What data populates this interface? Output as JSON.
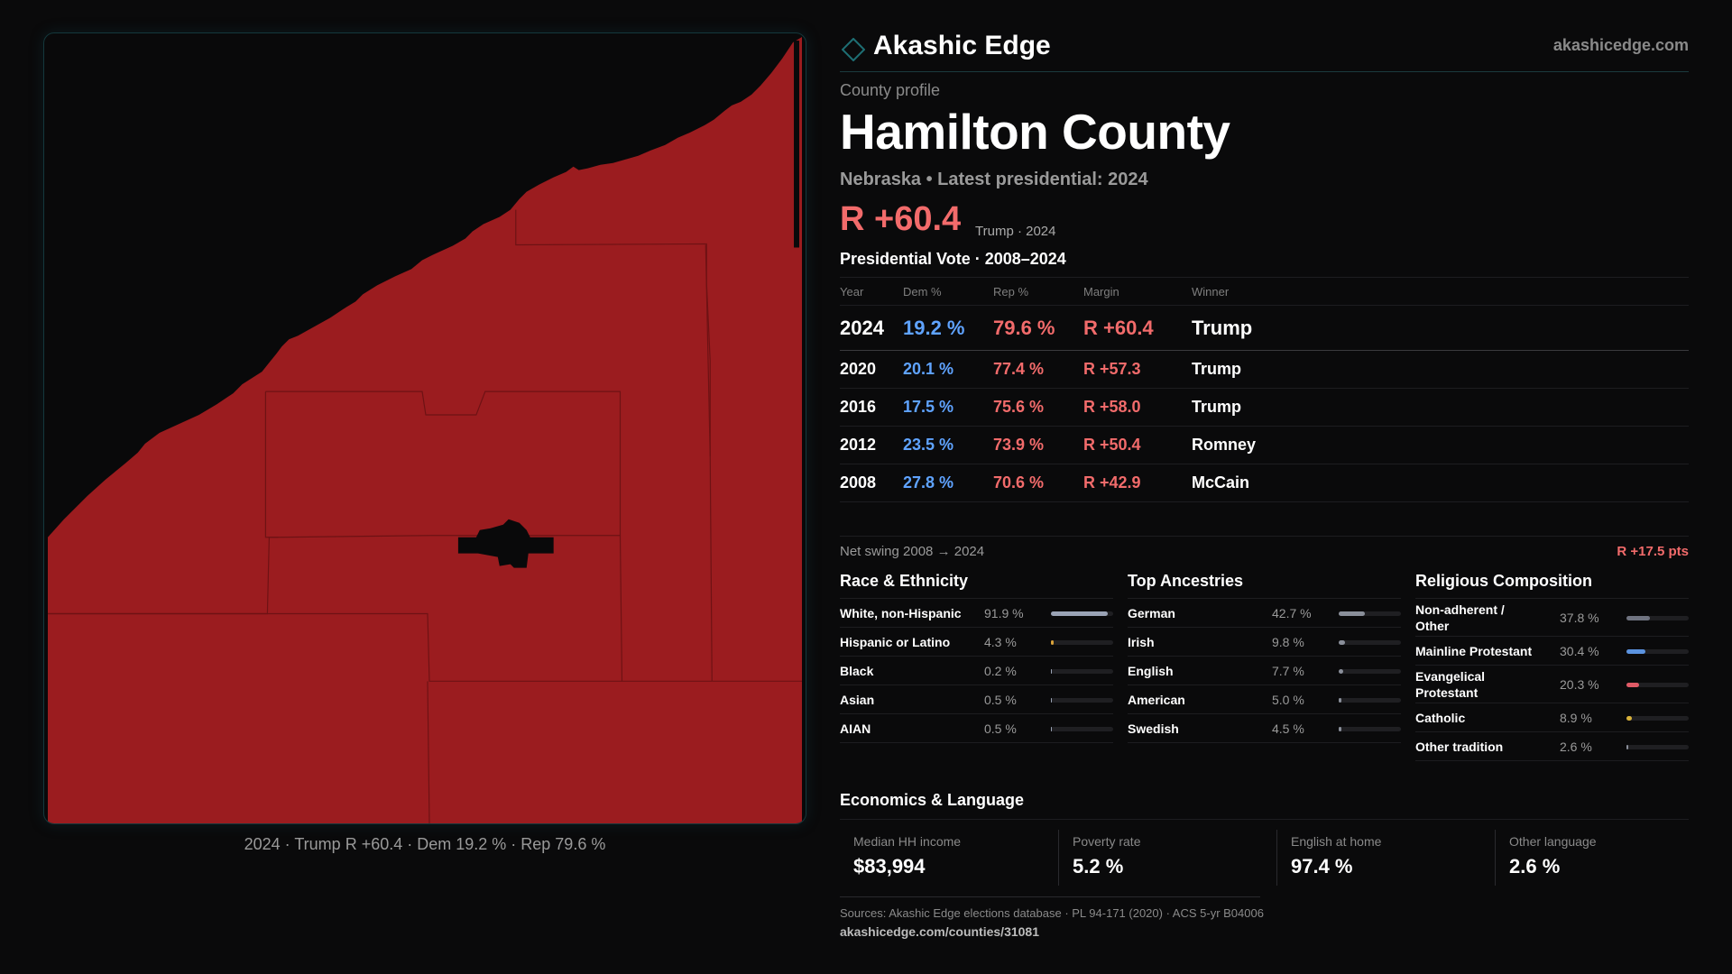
{
  "brand": {
    "name": "Akashic Edge",
    "url": "akashicedge.com",
    "logo_icon": "diamond-icon"
  },
  "map": {
    "caption": "2024 · Trump R +60.4 · Dem 19.2 % · Rep 79.6 %",
    "fill_color": "#9b1c1f"
  },
  "profile": {
    "eyebrow": "County profile",
    "title": "Hamilton County",
    "subtitle": "Nebraska • Latest presidential: 2024",
    "margin": "R +60.4",
    "margin_note": "Trump · 2024"
  },
  "vote": {
    "title": "Presidential Vote · 2008–2024",
    "headers": {
      "year": "Year",
      "dem": "Dem %",
      "rep": "Rep %",
      "margin": "Margin",
      "winner": "Winner"
    },
    "rows": [
      {
        "year": "2024",
        "dem": "19.2 %",
        "rep": "79.6 %",
        "margin": "R +60.4",
        "winner": "Trump"
      },
      {
        "year": "2020",
        "dem": "20.1 %",
        "rep": "77.4 %",
        "margin": "R +57.3",
        "winner": "Trump"
      },
      {
        "year": "2016",
        "dem": "17.5 %",
        "rep": "75.6 %",
        "margin": "R +58.0",
        "winner": "Trump"
      },
      {
        "year": "2012",
        "dem": "23.5 %",
        "rep": "73.9 %",
        "margin": "R +50.4",
        "winner": "Romney"
      },
      {
        "year": "2008",
        "dem": "27.8 %",
        "rep": "70.6 %",
        "margin": "R +42.9",
        "winner": "McCain"
      }
    ],
    "swing_label": "Net swing 2008 → 2024",
    "swing_value": "R +17.5 pts"
  },
  "race": {
    "title": "Race & Ethnicity",
    "items": [
      {
        "label": "White, non-Hispanic",
        "pct": "91.9 %",
        "value": 91.9,
        "color": "#9aa3b5"
      },
      {
        "label": "Hispanic or Latino",
        "pct": "4.3 %",
        "value": 4.3,
        "color": "#d9a23a"
      },
      {
        "label": "Black",
        "pct": "0.2 %",
        "value": 0.2,
        "color": "#9aa3b5"
      },
      {
        "label": "Asian",
        "pct": "0.5 %",
        "value": 0.5,
        "color": "#9aa3b5"
      },
      {
        "label": "AIAN",
        "pct": "0.5 %",
        "value": 0.5,
        "color": "#9aa3b5"
      }
    ]
  },
  "ancestry": {
    "title": "Top Ancestries",
    "items": [
      {
        "label": "German",
        "pct": "42.7 %",
        "value": 42.7,
        "color": "#8a8f9a"
      },
      {
        "label": "Irish",
        "pct": "9.8 %",
        "value": 9.8,
        "color": "#8a8f9a"
      },
      {
        "label": "English",
        "pct": "7.7 %",
        "value": 7.7,
        "color": "#8a8f9a"
      },
      {
        "label": "American",
        "pct": "5.0 %",
        "value": 5.0,
        "color": "#8a8f9a"
      },
      {
        "label": "Swedish",
        "pct": "4.5 %",
        "value": 4.5,
        "color": "#8a8f9a"
      }
    ]
  },
  "religion": {
    "title": "Religious Composition",
    "items": [
      {
        "label": "Non-adherent / Other",
        "pct": "37.8 %",
        "value": 37.8,
        "color": "#6f7380",
        "tall": true
      },
      {
        "label": "Mainline Protestant",
        "pct": "30.4 %",
        "value": 30.4,
        "color": "#5b93e0",
        "tall": false
      },
      {
        "label": "Evangelical Protestant",
        "pct": "20.3 %",
        "value": 20.3,
        "color": "#e05a66",
        "tall": true
      },
      {
        "label": "Catholic",
        "pct": "8.9 %",
        "value": 8.9,
        "color": "#d9b23a",
        "tall": false
      },
      {
        "label": "Other tradition",
        "pct": "2.6 %",
        "value": 2.6,
        "color": "#8a8f9a",
        "tall": false
      }
    ]
  },
  "economics": {
    "title": "Economics & Language",
    "items": [
      {
        "label": "Median HH income",
        "value": "$83,994"
      },
      {
        "label": "Poverty rate",
        "value": "5.2 %"
      },
      {
        "label": "English at home",
        "value": "97.4 %"
      },
      {
        "label": "Other language",
        "value": "2.6 %"
      }
    ]
  },
  "sources": {
    "line": "Sources: Akashic Edge elections database · PL 94-171 (2020) · ACS 5-yr B04006",
    "url": "akashicedge.com/counties/31081"
  }
}
